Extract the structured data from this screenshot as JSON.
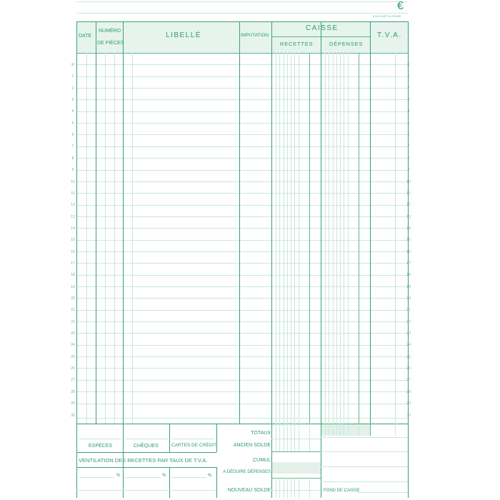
{
  "brand": {
    "symbol": "€",
    "reference": "EXACOMPTA 23508E"
  },
  "header": {
    "date": "DATE",
    "numero_line1": "NUMÉRO",
    "numero_line2": "DE PIÈCES",
    "libelle": "LIBELLÉ",
    "imputation": "IMPUTATION",
    "caisse": "CAISSE",
    "recettes": "RECETTES",
    "depenses": "DÉPENSES",
    "tva": "T.V.A."
  },
  "row_labels": [
    "R",
    "1",
    "2",
    "3",
    "4",
    "5",
    "6",
    "7",
    "8",
    "9",
    "10",
    "11",
    "12",
    "13",
    "14",
    "15",
    "16",
    "17",
    "18",
    "19",
    "20",
    "21",
    "22",
    "23",
    "24",
    "25",
    "26",
    "27",
    "28",
    "29",
    "30"
  ],
  "footer": {
    "especes": "ESPÈCES",
    "cheques": "CHÈQUES",
    "cartes": "CARTES DE CRÉDIT",
    "ventilation": "VENTILATION DES RECETTES PAR TAUX DE T.V.A.",
    "percent": "%",
    "totaux": "TOTAUX",
    "ancien_solde": "ANCIEN SOLDE",
    "cumul": "CUMUL",
    "a_deduire": "A DÉDUIRE DÉPENSES",
    "nouveau_solde": "NOUVEAU SOLDE",
    "fond_de_caisse": "FOND DE CAISSE"
  },
  "colors": {
    "ink": "#2e9a6c",
    "fill": "#e6f4ed",
    "rule": "#c9e8dc"
  }
}
